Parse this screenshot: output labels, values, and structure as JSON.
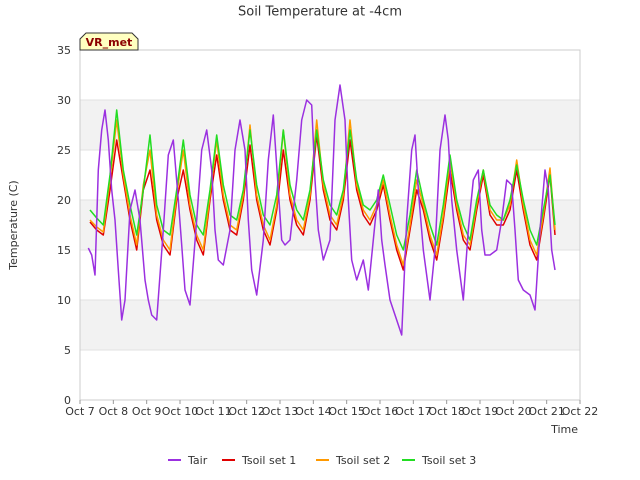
{
  "chart_data": {
    "type": "line",
    "title": "Soil Temperature at -4cm",
    "xlabel": "Time",
    "ylabel": "Temperature (C)",
    "badge": "VR_met",
    "ylim": [
      0,
      35
    ],
    "xlim": [
      "Oct 7",
      "Oct 22"
    ],
    "yticks": [
      0,
      5,
      10,
      15,
      20,
      25,
      30,
      35
    ],
    "xticks": [
      "Oct 7",
      "Oct 8",
      "Oct 9",
      "Oct 10",
      "Oct 11",
      "Oct 12",
      "Oct 13",
      "Oct 14",
      "Oct 15",
      "Oct 16",
      "Oct 17",
      "Oct 18",
      "Oct 19",
      "Oct 20",
      "Oct 21",
      "Oct 22"
    ],
    "grid": "horizontal bands",
    "legend_position": "bottom",
    "colors": {
      "Tair": "#9b30e0",
      "Tsoil set 1": "#e00000",
      "Tsoil set 2": "#ff9900",
      "Tsoil set 3": "#22dd22"
    },
    "series": [
      {
        "name": "Tair",
        "x": [
          7.25,
          7.35,
          7.45,
          7.55,
          7.65,
          7.75,
          7.85,
          7.95,
          8.05,
          8.15,
          8.25,
          8.35,
          8.5,
          8.65,
          8.8,
          8.95,
          9.05,
          9.15,
          9.3,
          9.5,
          9.65,
          9.8,
          9.95,
          10.05,
          10.15,
          10.3,
          10.5,
          10.65,
          10.8,
          10.95,
          11.05,
          11.15,
          11.3,
          11.5,
          11.65,
          11.8,
          11.95,
          12.05,
          12.15,
          12.3,
          12.5,
          12.65,
          12.8,
          12.95,
          13.05,
          13.15,
          13.3,
          13.5,
          13.65,
          13.8,
          13.95,
          14.05,
          14.15,
          14.3,
          14.5,
          14.65,
          14.8,
          14.95,
          15.05,
          15.15,
          15.3,
          15.5,
          15.65,
          15.8,
          15.95,
          16.05,
          16.15,
          16.3,
          16.5,
          16.65,
          16.8,
          16.95,
          17.05,
          17.15,
          17.3,
          17.5,
          17.65,
          17.8,
          17.95,
          18.05,
          18.15,
          18.3,
          18.5,
          18.65,
          18.8,
          18.95,
          19.05,
          19.15,
          19.3,
          19.5,
          19.65,
          19.8,
          19.95,
          20.05,
          20.15,
          20.3,
          20.5,
          20.65,
          20.8,
          20.95,
          21.05,
          21.15,
          21.25
        ],
        "y": [
          15.2,
          14.5,
          12.5,
          23,
          27,
          29,
          26,
          21,
          18,
          13,
          8,
          10,
          19,
          21,
          18,
          12,
          10,
          8.5,
          8,
          17,
          24.5,
          26,
          20,
          15.5,
          11,
          9.5,
          18,
          25,
          27,
          23,
          17,
          14,
          13.5,
          17,
          25,
          28,
          25,
          18,
          13,
          10.5,
          16,
          24,
          28.5,
          21,
          16,
          15.5,
          16,
          22,
          28,
          30,
          29.5,
          22,
          17,
          14,
          16,
          28,
          31.5,
          28,
          20,
          14,
          12,
          14,
          11,
          16,
          21,
          16,
          13.5,
          10,
          8,
          6.5,
          18,
          25,
          26.5,
          21,
          15,
          10,
          15,
          25,
          28.5,
          26,
          20,
          15,
          10,
          17,
          22,
          23,
          17,
          14.5,
          14.5,
          15,
          18,
          22,
          21.5,
          17,
          12,
          11,
          10.5,
          9,
          17,
          23,
          21,
          15,
          13
        ]
      },
      {
        "name": "Tsoil set 1",
        "x": [
          7.3,
          7.5,
          7.7,
          7.9,
          8.1,
          8.3,
          8.5,
          8.7,
          8.9,
          9.1,
          9.3,
          9.5,
          9.7,
          9.9,
          10.1,
          10.3,
          10.5,
          10.7,
          10.9,
          11.1,
          11.3,
          11.5,
          11.7,
          11.9,
          12.1,
          12.3,
          12.5,
          12.7,
          12.9,
          13.1,
          13.3,
          13.5,
          13.7,
          13.9,
          14.1,
          14.3,
          14.5,
          14.7,
          14.9,
          15.1,
          15.3,
          15.5,
          15.7,
          15.9,
          16.1,
          16.3,
          16.5,
          16.7,
          16.9,
          17.1,
          17.3,
          17.5,
          17.7,
          17.9,
          18.1,
          18.3,
          18.5,
          18.7,
          18.9,
          19.1,
          19.3,
          19.5,
          19.7,
          19.9,
          20.1,
          20.3,
          20.5,
          20.7,
          20.9,
          21.1,
          21.25
        ],
        "y": [
          17.8,
          17,
          16.5,
          21,
          26,
          22,
          18,
          15,
          21,
          23,
          18,
          15.5,
          14.5,
          20,
          23,
          19,
          16,
          14.5,
          20,
          24.5,
          20,
          17,
          16.5,
          20,
          25.5,
          20,
          17,
          15.5,
          19,
          25,
          20,
          17.5,
          16.5,
          20,
          26.5,
          21,
          18,
          17,
          20,
          26,
          21,
          18.5,
          17.5,
          19,
          21.5,
          18,
          15,
          13,
          17,
          21,
          19,
          16,
          14,
          18,
          23,
          19,
          16,
          15,
          19,
          22.5,
          18.5,
          17.5,
          17.5,
          19,
          23,
          19,
          15.5,
          14,
          18,
          22.5,
          16.5
        ]
      },
      {
        "name": "Tsoil set 2",
        "x": [
          7.3,
          7.5,
          7.7,
          7.9,
          8.1,
          8.3,
          8.5,
          8.7,
          8.9,
          9.1,
          9.3,
          9.5,
          9.7,
          9.9,
          10.1,
          10.3,
          10.5,
          10.7,
          10.9,
          11.1,
          11.3,
          11.5,
          11.7,
          11.9,
          12.1,
          12.3,
          12.5,
          12.7,
          12.9,
          13.1,
          13.3,
          13.5,
          13.7,
          13.9,
          14.1,
          14.3,
          14.5,
          14.7,
          14.9,
          15.1,
          15.3,
          15.5,
          15.7,
          15.9,
          16.1,
          16.3,
          16.5,
          16.7,
          16.9,
          17.1,
          17.3,
          17.5,
          17.7,
          17.9,
          18.1,
          18.3,
          18.5,
          18.7,
          18.9,
          19.1,
          19.3,
          19.5,
          19.7,
          19.9,
          20.1,
          20.3,
          20.5,
          20.7,
          20.9,
          21.1,
          21.25
        ],
        "y": [
          18,
          17.3,
          16.8,
          22,
          28,
          22.5,
          18.5,
          15.5,
          21.5,
          25,
          18.5,
          16,
          15,
          20.5,
          25,
          19.5,
          16.5,
          15,
          20.5,
          26,
          20.5,
          17.5,
          17,
          20.5,
          27.5,
          20.5,
          17.5,
          16,
          19.5,
          27,
          20.5,
          18,
          17,
          20.5,
          28,
          21.5,
          18.5,
          17.5,
          20.5,
          28,
          21.5,
          19,
          18,
          19.5,
          22,
          18.5,
          15.5,
          13.5,
          17.5,
          22,
          19.5,
          16.5,
          14.5,
          18.5,
          24,
          19.5,
          16.5,
          15.5,
          19.5,
          23,
          19,
          18,
          18,
          19.5,
          24,
          19.5,
          16,
          14.5,
          18.5,
          23.2,
          17
        ]
      },
      {
        "name": "Tsoil set 3",
        "x": [
          7.3,
          7.5,
          7.7,
          7.9,
          8.1,
          8.3,
          8.5,
          8.7,
          8.9,
          9.1,
          9.3,
          9.5,
          9.7,
          9.9,
          10.1,
          10.3,
          10.5,
          10.7,
          10.9,
          11.1,
          11.3,
          11.5,
          11.7,
          11.9,
          12.1,
          12.3,
          12.5,
          12.7,
          12.9,
          13.1,
          13.3,
          13.5,
          13.7,
          13.9,
          14.1,
          14.3,
          14.5,
          14.7,
          14.9,
          15.1,
          15.3,
          15.5,
          15.7,
          15.9,
          16.1,
          16.3,
          16.5,
          16.7,
          16.9,
          17.1,
          17.3,
          17.5,
          17.7,
          17.9,
          18.1,
          18.3,
          18.5,
          18.7,
          18.9,
          19.1,
          19.3,
          19.5,
          19.7,
          19.9,
          20.1,
          20.3,
          20.5,
          20.7,
          20.9,
          21.1,
          21.25
        ],
        "y": [
          19,
          18.2,
          17.5,
          22.5,
          29,
          23,
          19.5,
          16.5,
          21,
          26.5,
          19.5,
          17,
          16.5,
          21,
          26,
          20.5,
          17.5,
          16.5,
          21,
          26.5,
          21.5,
          18.5,
          18,
          21,
          27,
          21.5,
          18.5,
          17.5,
          20.5,
          27,
          21.5,
          19,
          18,
          21,
          27,
          22,
          19.5,
          18.5,
          21,
          27,
          22,
          19.5,
          19,
          20,
          22.5,
          19.5,
          16.5,
          15,
          18.5,
          23,
          20,
          17.5,
          15.5,
          19.5,
          24.5,
          20,
          17.5,
          16,
          20,
          23,
          19.5,
          18.5,
          18,
          20,
          23.5,
          20,
          17,
          15.5,
          19,
          22.5,
          17.5
        ]
      }
    ]
  }
}
